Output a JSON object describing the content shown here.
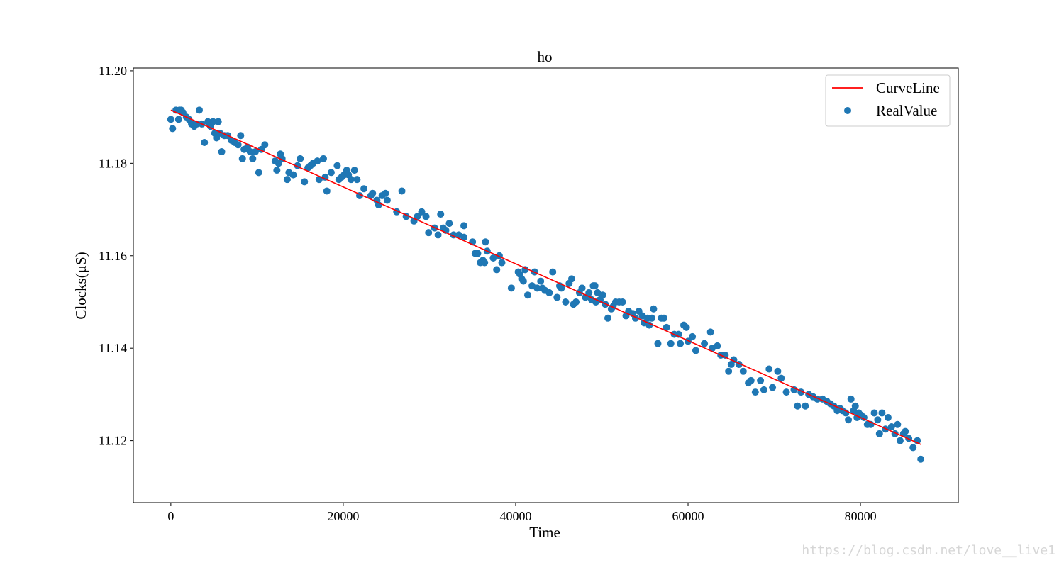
{
  "watermark": "https://blog.csdn.net/love__live1",
  "chart_data": {
    "type": "scatter",
    "title": "ho",
    "xlabel": "Time",
    "ylabel": "Clocks(μS)",
    "xlim": [
      -4350,
      91350
    ],
    "ylim": [
      11.1066,
      11.2006
    ],
    "xticks": [
      0,
      20000,
      40000,
      60000,
      80000
    ],
    "yticks": [
      11.12,
      11.14,
      11.16,
      11.18,
      11.2
    ],
    "xtick_labels": [
      "0",
      "20000",
      "40000",
      "60000",
      "80000"
    ],
    "ytick_labels": [
      "11.12",
      "11.14",
      "11.16",
      "11.18",
      "11.20"
    ],
    "grid": false,
    "legend": {
      "placement": "top-right",
      "entries": [
        {
          "label": "CurveLine",
          "marker": "line",
          "color": "#ff0000"
        },
        {
          "label": "RealValue",
          "marker": "circle",
          "color": "#1f77b4"
        }
      ]
    },
    "series": [
      {
        "name": "CurveLine",
        "kind": "line",
        "color": "#ff0000",
        "x": [
          0,
          87000
        ],
        "y": [
          11.1915,
          11.1192
        ]
      },
      {
        "name": "RealValue",
        "kind": "scatter",
        "color": "#1f77b4",
        "points": [
          [
            0,
            11.1895
          ],
          [
            200,
            11.1875
          ],
          [
            600,
            11.1915
          ],
          [
            900,
            11.1895
          ],
          [
            1000,
            11.1915
          ],
          [
            1200,
            11.1915
          ],
          [
            1400,
            11.191
          ],
          [
            1800,
            11.19
          ],
          [
            2100,
            11.1895
          ],
          [
            2400,
            11.1885
          ],
          [
            2700,
            11.188
          ],
          [
            3000,
            11.1885
          ],
          [
            3300,
            11.1915
          ],
          [
            3600,
            11.1885
          ],
          [
            3900,
            11.1845
          ],
          [
            4300,
            11.189
          ],
          [
            4600,
            11.188
          ],
          [
            4900,
            11.189
          ],
          [
            5100,
            11.1865
          ],
          [
            5300,
            11.1855
          ],
          [
            5500,
            11.189
          ],
          [
            5700,
            11.1865
          ],
          [
            5900,
            11.1825
          ],
          [
            6200,
            11.186
          ],
          [
            6600,
            11.186
          ],
          [
            7000,
            11.185
          ],
          [
            7400,
            11.1845
          ],
          [
            7800,
            11.184
          ],
          [
            8100,
            11.186
          ],
          [
            8300,
            11.181
          ],
          [
            8500,
            11.183
          ],
          [
            8900,
            11.1835
          ],
          [
            9200,
            11.1825
          ],
          [
            9500,
            11.181
          ],
          [
            9800,
            11.1825
          ],
          [
            10200,
            11.178
          ],
          [
            10500,
            11.183
          ],
          [
            10900,
            11.184
          ],
          [
            12100,
            11.1805
          ],
          [
            12300,
            11.1785
          ],
          [
            12500,
            11.18
          ],
          [
            12700,
            11.182
          ],
          [
            12900,
            11.181
          ],
          [
            13500,
            11.1765
          ],
          [
            13700,
            11.178
          ],
          [
            14200,
            11.1775
          ],
          [
            14700,
            11.1795
          ],
          [
            15000,
            11.181
          ],
          [
            15500,
            11.176
          ],
          [
            15900,
            11.179
          ],
          [
            16200,
            11.1795
          ],
          [
            16500,
            11.18
          ],
          [
            17000,
            11.1805
          ],
          [
            17200,
            11.1765
          ],
          [
            17700,
            11.181
          ],
          [
            17900,
            11.177
          ],
          [
            18100,
            11.174
          ],
          [
            18600,
            11.178
          ],
          [
            19300,
            11.1795
          ],
          [
            19500,
            11.1765
          ],
          [
            19800,
            11.177
          ],
          [
            20100,
            11.1775
          ],
          [
            20400,
            11.1785
          ],
          [
            20600,
            11.1775
          ],
          [
            20900,
            11.1765
          ],
          [
            21300,
            11.1785
          ],
          [
            21600,
            11.1765
          ],
          [
            21900,
            11.173
          ],
          [
            22400,
            11.1745
          ],
          [
            23200,
            11.173
          ],
          [
            23400,
            11.1735
          ],
          [
            23900,
            11.172
          ],
          [
            24100,
            11.171
          ],
          [
            24500,
            11.173
          ],
          [
            24900,
            11.1735
          ],
          [
            25100,
            11.172
          ],
          [
            26200,
            11.1695
          ],
          [
            26800,
            11.174
          ],
          [
            27300,
            11.1685
          ],
          [
            28200,
            11.1675
          ],
          [
            28600,
            11.1685
          ],
          [
            29100,
            11.1695
          ],
          [
            29600,
            11.1685
          ],
          [
            29900,
            11.165
          ],
          [
            30600,
            11.166
          ],
          [
            31000,
            11.1645
          ],
          [
            31300,
            11.169
          ],
          [
            31600,
            11.166
          ],
          [
            31900,
            11.1655
          ],
          [
            32300,
            11.167
          ],
          [
            32800,
            11.1645
          ],
          [
            33400,
            11.1645
          ],
          [
            34000,
            11.164
          ],
          [
            34000,
            11.1665
          ],
          [
            35000,
            11.163
          ],
          [
            35300,
            11.1605
          ],
          [
            35600,
            11.1605
          ],
          [
            35900,
            11.1585
          ],
          [
            36200,
            11.159
          ],
          [
            36400,
            11.1585
          ],
          [
            36500,
            11.163
          ],
          [
            36700,
            11.161
          ],
          [
            37400,
            11.1595
          ],
          [
            37800,
            11.157
          ],
          [
            38100,
            11.16
          ],
          [
            38400,
            11.1585
          ],
          [
            39500,
            11.153
          ],
          [
            40300,
            11.1565
          ],
          [
            40500,
            11.156
          ],
          [
            40700,
            11.155
          ],
          [
            40900,
            11.1545
          ],
          [
            41100,
            11.157
          ],
          [
            41400,
            11.1515
          ],
          [
            41900,
            11.1535
          ],
          [
            42200,
            11.1565
          ],
          [
            42500,
            11.153
          ],
          [
            42900,
            11.1545
          ],
          [
            43100,
            11.153
          ],
          [
            43400,
            11.1525
          ],
          [
            43900,
            11.152
          ],
          [
            44300,
            11.1565
          ],
          [
            44800,
            11.151
          ],
          [
            45100,
            11.1535
          ],
          [
            45300,
            11.153
          ],
          [
            45800,
            11.15
          ],
          [
            46200,
            11.154
          ],
          [
            46500,
            11.155
          ],
          [
            46700,
            11.1495
          ],
          [
            47000,
            11.15
          ],
          [
            47400,
            11.152
          ],
          [
            47700,
            11.153
          ],
          [
            48100,
            11.151
          ],
          [
            48500,
            11.152
          ],
          [
            48800,
            11.1505
          ],
          [
            49000,
            11.1535
          ],
          [
            49200,
            11.1535
          ],
          [
            49300,
            11.15
          ],
          [
            49500,
            11.152
          ],
          [
            49800,
            11.1505
          ],
          [
            50100,
            11.1515
          ],
          [
            50400,
            11.1495
          ],
          [
            50700,
            11.1465
          ],
          [
            51100,
            11.1485
          ],
          [
            51300,
            11.149
          ],
          [
            51600,
            11.15
          ],
          [
            52000,
            11.15
          ],
          [
            52400,
            11.15
          ],
          [
            52800,
            11.147
          ],
          [
            53100,
            11.148
          ],
          [
            53600,
            11.1475
          ],
          [
            53900,
            11.1465
          ],
          [
            54300,
            11.148
          ],
          [
            54700,
            11.147
          ],
          [
            54900,
            11.1455
          ],
          [
            55300,
            11.1465
          ],
          [
            55500,
            11.145
          ],
          [
            55800,
            11.1465
          ],
          [
            56000,
            11.1485
          ],
          [
            56500,
            11.141
          ],
          [
            56900,
            11.1465
          ],
          [
            57200,
            11.1465
          ],
          [
            57500,
            11.1445
          ],
          [
            58000,
            11.141
          ],
          [
            58400,
            11.143
          ],
          [
            58900,
            11.143
          ],
          [
            59100,
            11.141
          ],
          [
            59500,
            11.145
          ],
          [
            59800,
            11.1445
          ],
          [
            60000,
            11.1415
          ],
          [
            60500,
            11.1425
          ],
          [
            60900,
            11.1395
          ],
          [
            61900,
            11.141
          ],
          [
            62600,
            11.1435
          ],
          [
            62800,
            11.14
          ],
          [
            63400,
            11.1405
          ],
          [
            63800,
            11.1385
          ],
          [
            64300,
            11.1385
          ],
          [
            64700,
            11.135
          ],
          [
            65000,
            11.1365
          ],
          [
            65300,
            11.1375
          ],
          [
            65900,
            11.1365
          ],
          [
            66400,
            11.135
          ],
          [
            67000,
            11.1325
          ],
          [
            67300,
            11.133
          ],
          [
            67800,
            11.1305
          ],
          [
            68400,
            11.133
          ],
          [
            68800,
            11.131
          ],
          [
            69400,
            11.1355
          ],
          [
            69800,
            11.1315
          ],
          [
            70400,
            11.135
          ],
          [
            70800,
            11.1335
          ],
          [
            71400,
            11.1305
          ],
          [
            72300,
            11.131
          ],
          [
            72700,
            11.1275
          ],
          [
            73100,
            11.1305
          ],
          [
            73600,
            11.1275
          ],
          [
            74000,
            11.13
          ],
          [
            74500,
            11.1295
          ],
          [
            75000,
            11.129
          ],
          [
            75600,
            11.129
          ],
          [
            76100,
            11.1285
          ],
          [
            76500,
            11.128
          ],
          [
            76900,
            11.1275
          ],
          [
            77300,
            11.1265
          ],
          [
            77600,
            11.127
          ],
          [
            77900,
            11.1265
          ],
          [
            78300,
            11.126
          ],
          [
            78600,
            11.1245
          ],
          [
            78900,
            11.129
          ],
          [
            79200,
            11.1265
          ],
          [
            79400,
            11.1275
          ],
          [
            79600,
            11.125
          ],
          [
            79800,
            11.126
          ],
          [
            80100,
            11.1255
          ],
          [
            80400,
            11.125
          ],
          [
            80800,
            11.1235
          ],
          [
            81200,
            11.1235
          ],
          [
            81600,
            11.126
          ],
          [
            82000,
            11.1245
          ],
          [
            82200,
            11.1215
          ],
          [
            82500,
            11.126
          ],
          [
            82900,
            11.1225
          ],
          [
            83200,
            11.125
          ],
          [
            83600,
            11.123
          ],
          [
            84000,
            11.1215
          ],
          [
            84300,
            11.1235
          ],
          [
            84600,
            11.12
          ],
          [
            85000,
            11.1215
          ],
          [
            85200,
            11.122
          ],
          [
            85600,
            11.1205
          ],
          [
            86100,
            11.1185
          ],
          [
            86600,
            11.12
          ],
          [
            87000,
            11.116
          ]
        ]
      }
    ]
  }
}
